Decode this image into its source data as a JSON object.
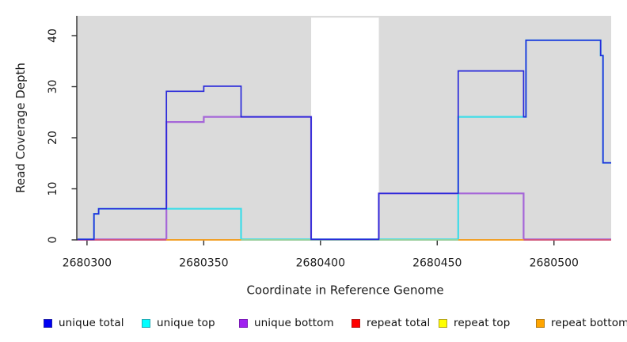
{
  "axes": {
    "xlabel": "Coordinate in Reference Genome",
    "ylabel": "Read Coverage Depth"
  },
  "legend": {
    "items": [
      {
        "label": "unique total",
        "color": "#0000f2",
        "border": "#2222aa"
      },
      {
        "label": "unique top",
        "color": "#00ffff",
        "border": "#22aab4"
      },
      {
        "label": "unique bottom",
        "color": "#a020f0",
        "border": "#7a1ab6"
      },
      {
        "label": "repeat total",
        "color": "#ff0000",
        "border": "#b41616"
      },
      {
        "label": "repeat top",
        "color": "#ffff00",
        "border": "#b4a41a"
      },
      {
        "label": "repeat bottom",
        "color": "#ffa500",
        "border": "#b47c16"
      }
    ]
  },
  "chart_data": {
    "type": "line",
    "subtype": "step",
    "title": "",
    "xlabel": "Coordinate in Reference Genome",
    "ylabel": "Read Coverage Depth",
    "xlim": [
      2680295.8,
      2680524.5
    ],
    "ylim": [
      0,
      43.9
    ],
    "x_ticks": [
      2680300,
      2680350,
      2680400,
      2680450,
      2680500
    ],
    "y_ticks": [
      0,
      10,
      20,
      30,
      40
    ],
    "grid": "off",
    "legend_position": "bottom",
    "panel_background": "#dbdbdb",
    "masked_region": {
      "x0": 2680396,
      "x1": 2680425,
      "color": "#ffffff"
    },
    "layers": [
      {
        "name": "unique bottom",
        "type": "step",
        "color": "#a566d8",
        "width": 2.2,
        "points": [
          [
            2680296,
            0
          ],
          [
            2680334,
            0
          ],
          [
            2680334,
            23
          ],
          [
            2680350,
            23
          ],
          [
            2680350,
            24
          ],
          [
            2680396,
            24
          ],
          [
            2680396,
            0
          ],
          [
            2680425,
            0
          ],
          [
            2680425,
            9
          ],
          [
            2680487,
            9
          ],
          [
            2680487,
            0
          ],
          [
            2680524.5,
            0
          ]
        ]
      },
      {
        "name": "unique top",
        "type": "step",
        "color": "#3edde8",
        "width": 2.2,
        "points": [
          [
            2680296,
            0
          ],
          [
            2680303,
            0
          ],
          [
            2680303,
            5
          ],
          [
            2680305,
            5
          ],
          [
            2680305,
            6
          ],
          [
            2680366,
            6
          ],
          [
            2680366,
            0
          ],
          [
            2680459,
            0
          ],
          [
            2680459,
            24
          ],
          [
            2680488,
            24
          ],
          [
            2680488,
            39
          ],
          [
            2680520,
            39
          ],
          [
            2680520,
            36
          ],
          [
            2680521,
            36
          ],
          [
            2680521,
            15
          ],
          [
            2680524.5,
            15
          ]
        ]
      },
      {
        "name": "repeat total (0 baseline)",
        "type": "hseg",
        "color": "#d95379",
        "width": 1.8,
        "y": 0,
        "segments": [
          [
            2680296,
            2680334
          ],
          [
            2680487,
            2680524.5
          ]
        ]
      },
      {
        "name": "repeat bottom (0 baseline)",
        "type": "hseg",
        "color": "#ffa41c",
        "width": 1.8,
        "y": 0,
        "segments": [
          [
            2680334,
            2680366
          ],
          [
            2680459,
            2680487
          ]
        ]
      },
      {
        "name": "repeat top over unique top (0 baseline)",
        "type": "hseg",
        "color": "#99d49b",
        "width": 1.8,
        "y": 0,
        "segments": [
          [
            2680366,
            2680459
          ]
        ]
      },
      {
        "name": "unique total",
        "type": "step",
        "color": "#2a2ada",
        "width": 1.7,
        "points": [
          [
            2680296,
            0
          ],
          [
            2680303,
            0
          ],
          [
            2680303,
            5
          ],
          [
            2680305,
            5
          ],
          [
            2680305,
            6
          ],
          [
            2680334,
            6
          ],
          [
            2680334,
            29
          ],
          [
            2680350,
            29
          ],
          [
            2680350,
            30
          ],
          [
            2680366,
            30
          ],
          [
            2680366,
            24
          ],
          [
            2680396,
            24
          ],
          [
            2680396,
            0
          ],
          [
            2680425,
            0
          ],
          [
            2680425,
            9
          ],
          [
            2680459,
            9
          ],
          [
            2680459,
            33
          ],
          [
            2680487,
            33
          ],
          [
            2680487,
            24
          ],
          [
            2680488,
            24
          ],
          [
            2680488,
            39
          ],
          [
            2680520,
            39
          ],
          [
            2680520,
            36
          ],
          [
            2680521,
            36
          ],
          [
            2680521,
            15
          ],
          [
            2680524.5,
            15
          ]
        ]
      }
    ]
  }
}
